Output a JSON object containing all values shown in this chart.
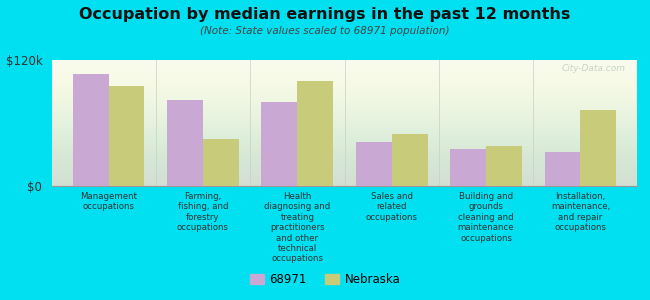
{
  "title": "Occupation by median earnings in the past 12 months",
  "subtitle": "(Note: State values scaled to 68971 population)",
  "background_color": "#00e0f0",
  "chart_bg_top": "#e8eecc",
  "chart_bg_bottom": "#f8faf0",
  "bar_color_68971": "#c9a8d4",
  "bar_color_nebraska": "#c8cc7a",
  "ylim": [
    0,
    120000
  ],
  "ytick_labels": [
    "$0",
    "$120k"
  ],
  "categories": [
    "Management\noccupations",
    "Farming,\nfishing, and\nforestry\noccupations",
    "Health\ndiagnosing and\ntreating\npractitioners\nand other\ntechnical\noccupations",
    "Sales and\nrelated\noccupations",
    "Building and\ngrounds\ncleaning and\nmaintenance\noccupations",
    "Installation,\nmaintenance,\nand repair\noccupations"
  ],
  "values_68971": [
    107000,
    82000,
    80000,
    42000,
    35000,
    32000
  ],
  "values_nebraska": [
    95000,
    45000,
    100000,
    50000,
    38000,
    72000
  ],
  "legend_labels": [
    "68971",
    "Nebraska"
  ],
  "watermark": "City-Data.com"
}
